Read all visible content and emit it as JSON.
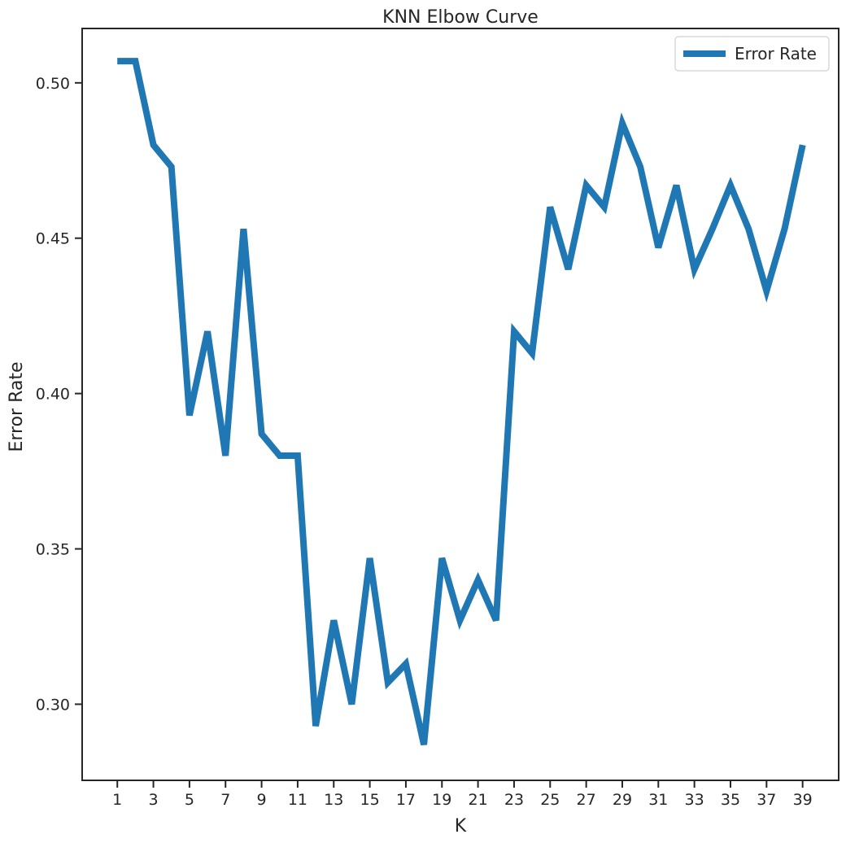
{
  "chart_data": {
    "type": "line",
    "title": "KNN Elbow Curve",
    "xlabel": "K",
    "ylabel": "Error Rate",
    "xlim": [
      -0.95,
      41.0
    ],
    "ylim": [
      0.2755,
      0.5175
    ],
    "x_ticks": [
      1,
      3,
      5,
      7,
      9,
      11,
      13,
      15,
      17,
      19,
      21,
      23,
      25,
      27,
      29,
      31,
      33,
      35,
      37,
      39
    ],
    "y_ticks": [
      0.3,
      0.35,
      0.4,
      0.45,
      0.5
    ],
    "y_tick_labels": [
      "0.30",
      "0.35",
      "0.40",
      "0.45",
      "0.50"
    ],
    "grid": false,
    "legend": "top-right",
    "series": [
      {
        "name": "Error Rate",
        "color": "#1f77b4",
        "x": [
          1,
          2,
          3,
          4,
          5,
          6,
          7,
          8,
          9,
          10,
          11,
          12,
          13,
          14,
          15,
          16,
          17,
          18,
          19,
          20,
          21,
          22,
          23,
          24,
          25,
          26,
          27,
          28,
          29,
          30,
          31,
          32,
          33,
          34,
          35,
          36,
          37,
          38,
          39
        ],
        "values": [
          0.507,
          0.507,
          0.48,
          0.473,
          0.393,
          0.42,
          0.38,
          0.453,
          0.387,
          0.38,
          0.38,
          0.293,
          0.327,
          0.3,
          0.347,
          0.307,
          0.313,
          0.287,
          0.347,
          0.327,
          0.34,
          0.327,
          0.42,
          0.413,
          0.46,
          0.44,
          0.467,
          0.46,
          0.487,
          0.473,
          0.447,
          0.467,
          0.44,
          0.453,
          0.467,
          0.453,
          0.433,
          0.453,
          0.48
        ]
      }
    ]
  }
}
